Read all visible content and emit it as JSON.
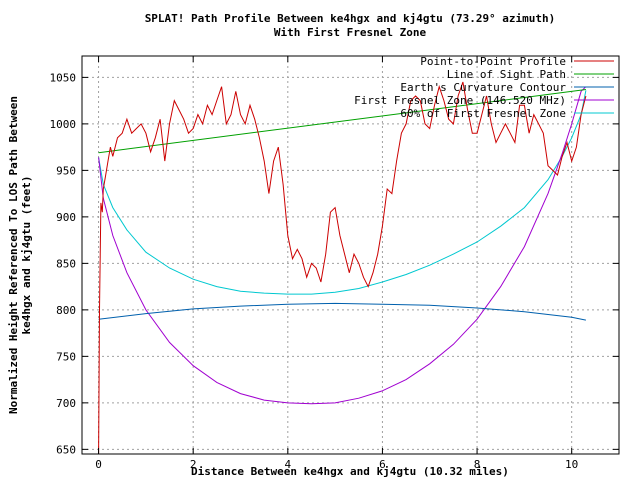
{
  "chart_data": {
    "type": "line",
    "title": "SPLAT! Path Profile Between ke4hgx and kj4gtu (73.29° azimuth)",
    "subtitle": "With First Fresnel Zone",
    "xlabel": "Distance Between ke4hgx and kj4gtu (10.32 miles)",
    "ylabel_line1": "Normalized Height Referenced To LOS Path Between",
    "ylabel_line2": "ke4hgx and kj4gtu (feet)",
    "xlim": [
      -0.35,
      11.0
    ],
    "ylim": [
      645,
      1073
    ],
    "x_ticks": [
      0,
      2,
      4,
      6,
      8,
      10
    ],
    "y_ticks": [
      650,
      700,
      750,
      800,
      850,
      900,
      950,
      1000,
      1050
    ],
    "grid": true,
    "legend_position": "top-right",
    "series": [
      {
        "name": "Point-to-Point Profile",
        "color": "#cc0000",
        "x": [
          0,
          0.02,
          0.05,
          0.08,
          0.1,
          0.15,
          0.2,
          0.25,
          0.3,
          0.4,
          0.5,
          0.6,
          0.7,
          0.8,
          0.9,
          1.0,
          1.1,
          1.2,
          1.3,
          1.4,
          1.5,
          1.6,
          1.7,
          1.8,
          1.9,
          2.0,
          2.1,
          2.2,
          2.3,
          2.4,
          2.5,
          2.6,
          2.7,
          2.8,
          2.9,
          3.0,
          3.1,
          3.2,
          3.3,
          3.4,
          3.5,
          3.6,
          3.7,
          3.8,
          3.9,
          4.0,
          4.1,
          4.2,
          4.3,
          4.4,
          4.5,
          4.6,
          4.7,
          4.8,
          4.9,
          5.0,
          5.1,
          5.2,
          5.3,
          5.4,
          5.5,
          5.6,
          5.7,
          5.8,
          5.9,
          6.0,
          6.1,
          6.2,
          6.3,
          6.4,
          6.5,
          6.6,
          6.7,
          6.8,
          6.9,
          7.0,
          7.1,
          7.2,
          7.3,
          7.4,
          7.5,
          7.6,
          7.7,
          7.8,
          7.9,
          8.0,
          8.1,
          8.2,
          8.3,
          8.4,
          8.5,
          8.6,
          8.7,
          8.8,
          8.9,
          9.0,
          9.1,
          9.2,
          9.3,
          9.4,
          9.5,
          9.6,
          9.7,
          9.8,
          9.9,
          10.0,
          10.1,
          10.2,
          10.3
        ],
        "y": [
          645,
          800,
          915,
          905,
          930,
          945,
          960,
          975,
          965,
          985,
          990,
          1005,
          990,
          995,
          1000,
          990,
          970,
          985,
          1005,
          960,
          1000,
          1025,
          1015,
          1005,
          990,
          995,
          1010,
          1000,
          1020,
          1010,
          1025,
          1040,
          1000,
          1010,
          1035,
          1010,
          1000,
          1020,
          1005,
          985,
          960,
          925,
          960,
          975,
          935,
          880,
          855,
          865,
          855,
          835,
          850,
          845,
          830,
          860,
          905,
          910,
          880,
          860,
          840,
          860,
          850,
          835,
          825,
          840,
          860,
          890,
          930,
          925,
          960,
          990,
          1000,
          1025,
          1030,
          1025,
          1000,
          995,
          1020,
          1040,
          1025,
          1005,
          1000,
          1030,
          1045,
          1015,
          990,
          990,
          1010,
          1030,
          1000,
          980,
          990,
          1000,
          990,
          980,
          1020,
          1020,
          990,
          1010,
          1000,
          990,
          955,
          950,
          945,
          965,
          980,
          960,
          975,
          1010,
          1030
        ]
      },
      {
        "name": "Line of Sight Path",
        "color": "#00a000",
        "x": [
          0,
          10.3
        ],
        "y": [
          969,
          1037
        ]
      },
      {
        "name": "Earth's Curvature Contour",
        "color": "#0060ad",
        "x": [
          0,
          1,
          2,
          3,
          4,
          5,
          6,
          7,
          8,
          9,
          10,
          10.3
        ],
        "y": [
          790,
          796,
          801,
          804,
          806,
          807,
          806,
          805,
          802,
          798,
          792,
          789
        ]
      },
      {
        "name": "First Fresnel Zone (146.520 MHz)",
        "color": "#a000d0",
        "x": [
          0,
          0.1,
          0.3,
          0.6,
          1.0,
          1.5,
          2.0,
          2.5,
          3.0,
          3.5,
          4.0,
          4.5,
          5.0,
          5.5,
          6.0,
          6.5,
          7.0,
          7.5,
          8.0,
          8.5,
          9.0,
          9.5,
          9.8,
          10.0,
          10.2,
          10.3
        ],
        "y": [
          964,
          920,
          880,
          840,
          800,
          765,
          740,
          722,
          710,
          703,
          700,
          699,
          700,
          705,
          713,
          725,
          742,
          763,
          790,
          825,
          868,
          925,
          968,
          1000,
          1035,
          1040
        ]
      },
      {
        "name": "60% of First Fresnel Zone",
        "color": "#00c8d0",
        "x": [
          0,
          0.1,
          0.3,
          0.6,
          1.0,
          1.5,
          2.0,
          2.5,
          3.0,
          3.5,
          4.0,
          4.5,
          5.0,
          5.5,
          6.0,
          6.5,
          7.0,
          7.5,
          8.0,
          8.5,
          9.0,
          9.5,
          9.8,
          10.0,
          10.2,
          10.3
        ],
        "y": [
          964,
          935,
          910,
          886,
          862,
          845,
          833,
          825,
          820,
          818,
          817,
          817,
          819,
          823,
          830,
          838,
          848,
          860,
          873,
          890,
          910,
          940,
          965,
          985,
          1010,
          1036
        ]
      }
    ]
  }
}
